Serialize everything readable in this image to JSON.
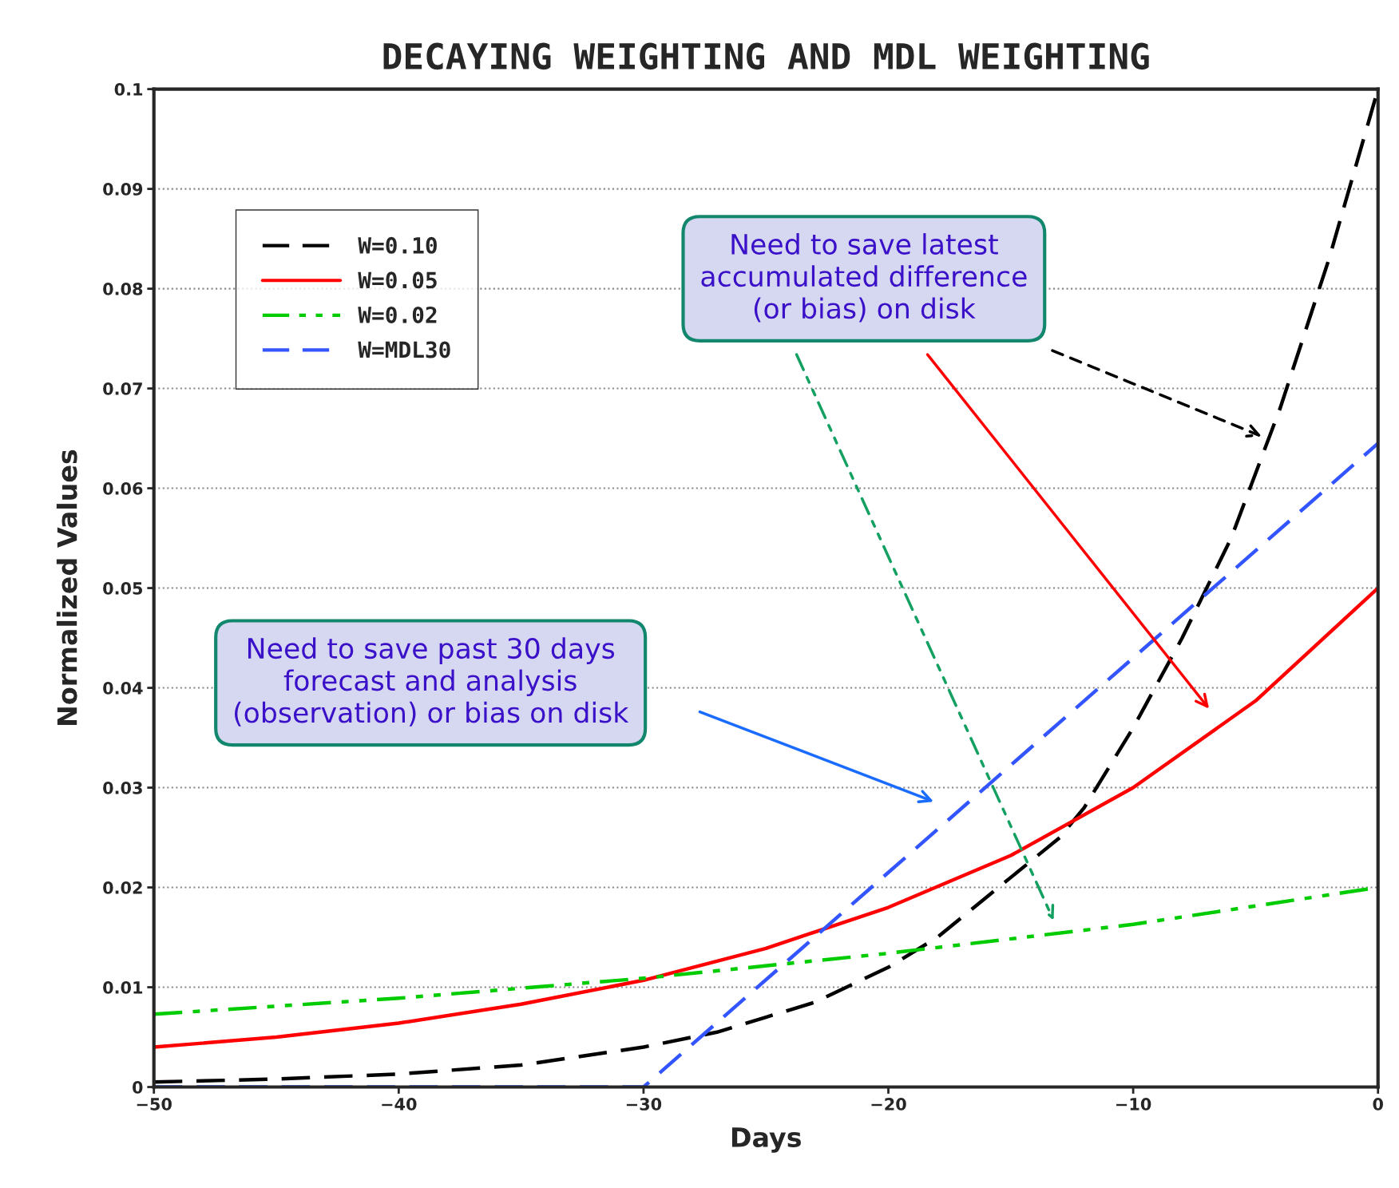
{
  "chart_data": {
    "type": "line",
    "title": "DECAYING WEIGHTING AND MDL WEIGHTING",
    "xlabel": "Days",
    "ylabel": "Normalized Values",
    "xlim": [
      -50,
      0
    ],
    "ylim": [
      0,
      0.1
    ],
    "xticks": [
      {
        "value": -50,
        "label": "−50"
      },
      {
        "value": -40,
        "label": "−40"
      },
      {
        "value": -30,
        "label": "−30"
      },
      {
        "value": -20,
        "label": "−20"
      },
      {
        "value": -10,
        "label": "−10"
      },
      0
    ],
    "yticks": [
      0,
      0.01,
      0.02,
      0.03,
      0.04,
      0.05,
      0.06,
      0.07,
      0.08,
      0.09,
      0.1
    ],
    "grid": "y",
    "legend": "top left",
    "series": [
      {
        "name": "W=0.10",
        "color": "#000000",
        "line_style": "dashed",
        "x": [
          -50,
          -45,
          -40,
          -35,
          -30,
          -27,
          -25,
          -23,
          -20,
          -18,
          -16,
          -14,
          -13,
          -12,
          -10,
          -8,
          -6,
          -4,
          -2,
          0
        ],
        "values": [
          0.0005,
          0.0008,
          0.0013,
          0.0022,
          0.004,
          0.0055,
          0.007,
          0.0085,
          0.012,
          0.015,
          0.019,
          0.023,
          0.025,
          0.028,
          0.036,
          0.045,
          0.055,
          0.068,
          0.083,
          0.1
        ]
      },
      {
        "name": "W=0.05",
        "color": "#ff0000",
        "line_style": "solid",
        "x": [
          -50,
          -45,
          -40,
          -35,
          -30,
          -25,
          -20,
          -15,
          -10,
          -5,
          0
        ],
        "values": [
          0.004,
          0.005,
          0.0064,
          0.0083,
          0.0107,
          0.0139,
          0.018,
          0.0232,
          0.03,
          0.0387,
          0.05
        ]
      },
      {
        "name": "W=0.02",
        "color": "#00cc00",
        "line_style": "dashdot",
        "x": [
          -50,
          -40,
          -30,
          -20,
          -10,
          0
        ],
        "values": [
          0.0073,
          0.0089,
          0.0109,
          0.0134,
          0.0163,
          0.02
        ]
      },
      {
        "name": "W=MDL30",
        "color": "#3355ff",
        "line_style": "dashed",
        "x": [
          -50,
          -30,
          -20,
          -10,
          0
        ],
        "values": [
          0,
          0,
          0.0215,
          0.043,
          0.0645
        ]
      }
    ],
    "annotations": [
      "Need to save latest\naccumulated difference\n(or bias) on disk",
      "Need to save past 30 days\nforecast and analysis\n(observation) or bias on disk"
    ]
  }
}
